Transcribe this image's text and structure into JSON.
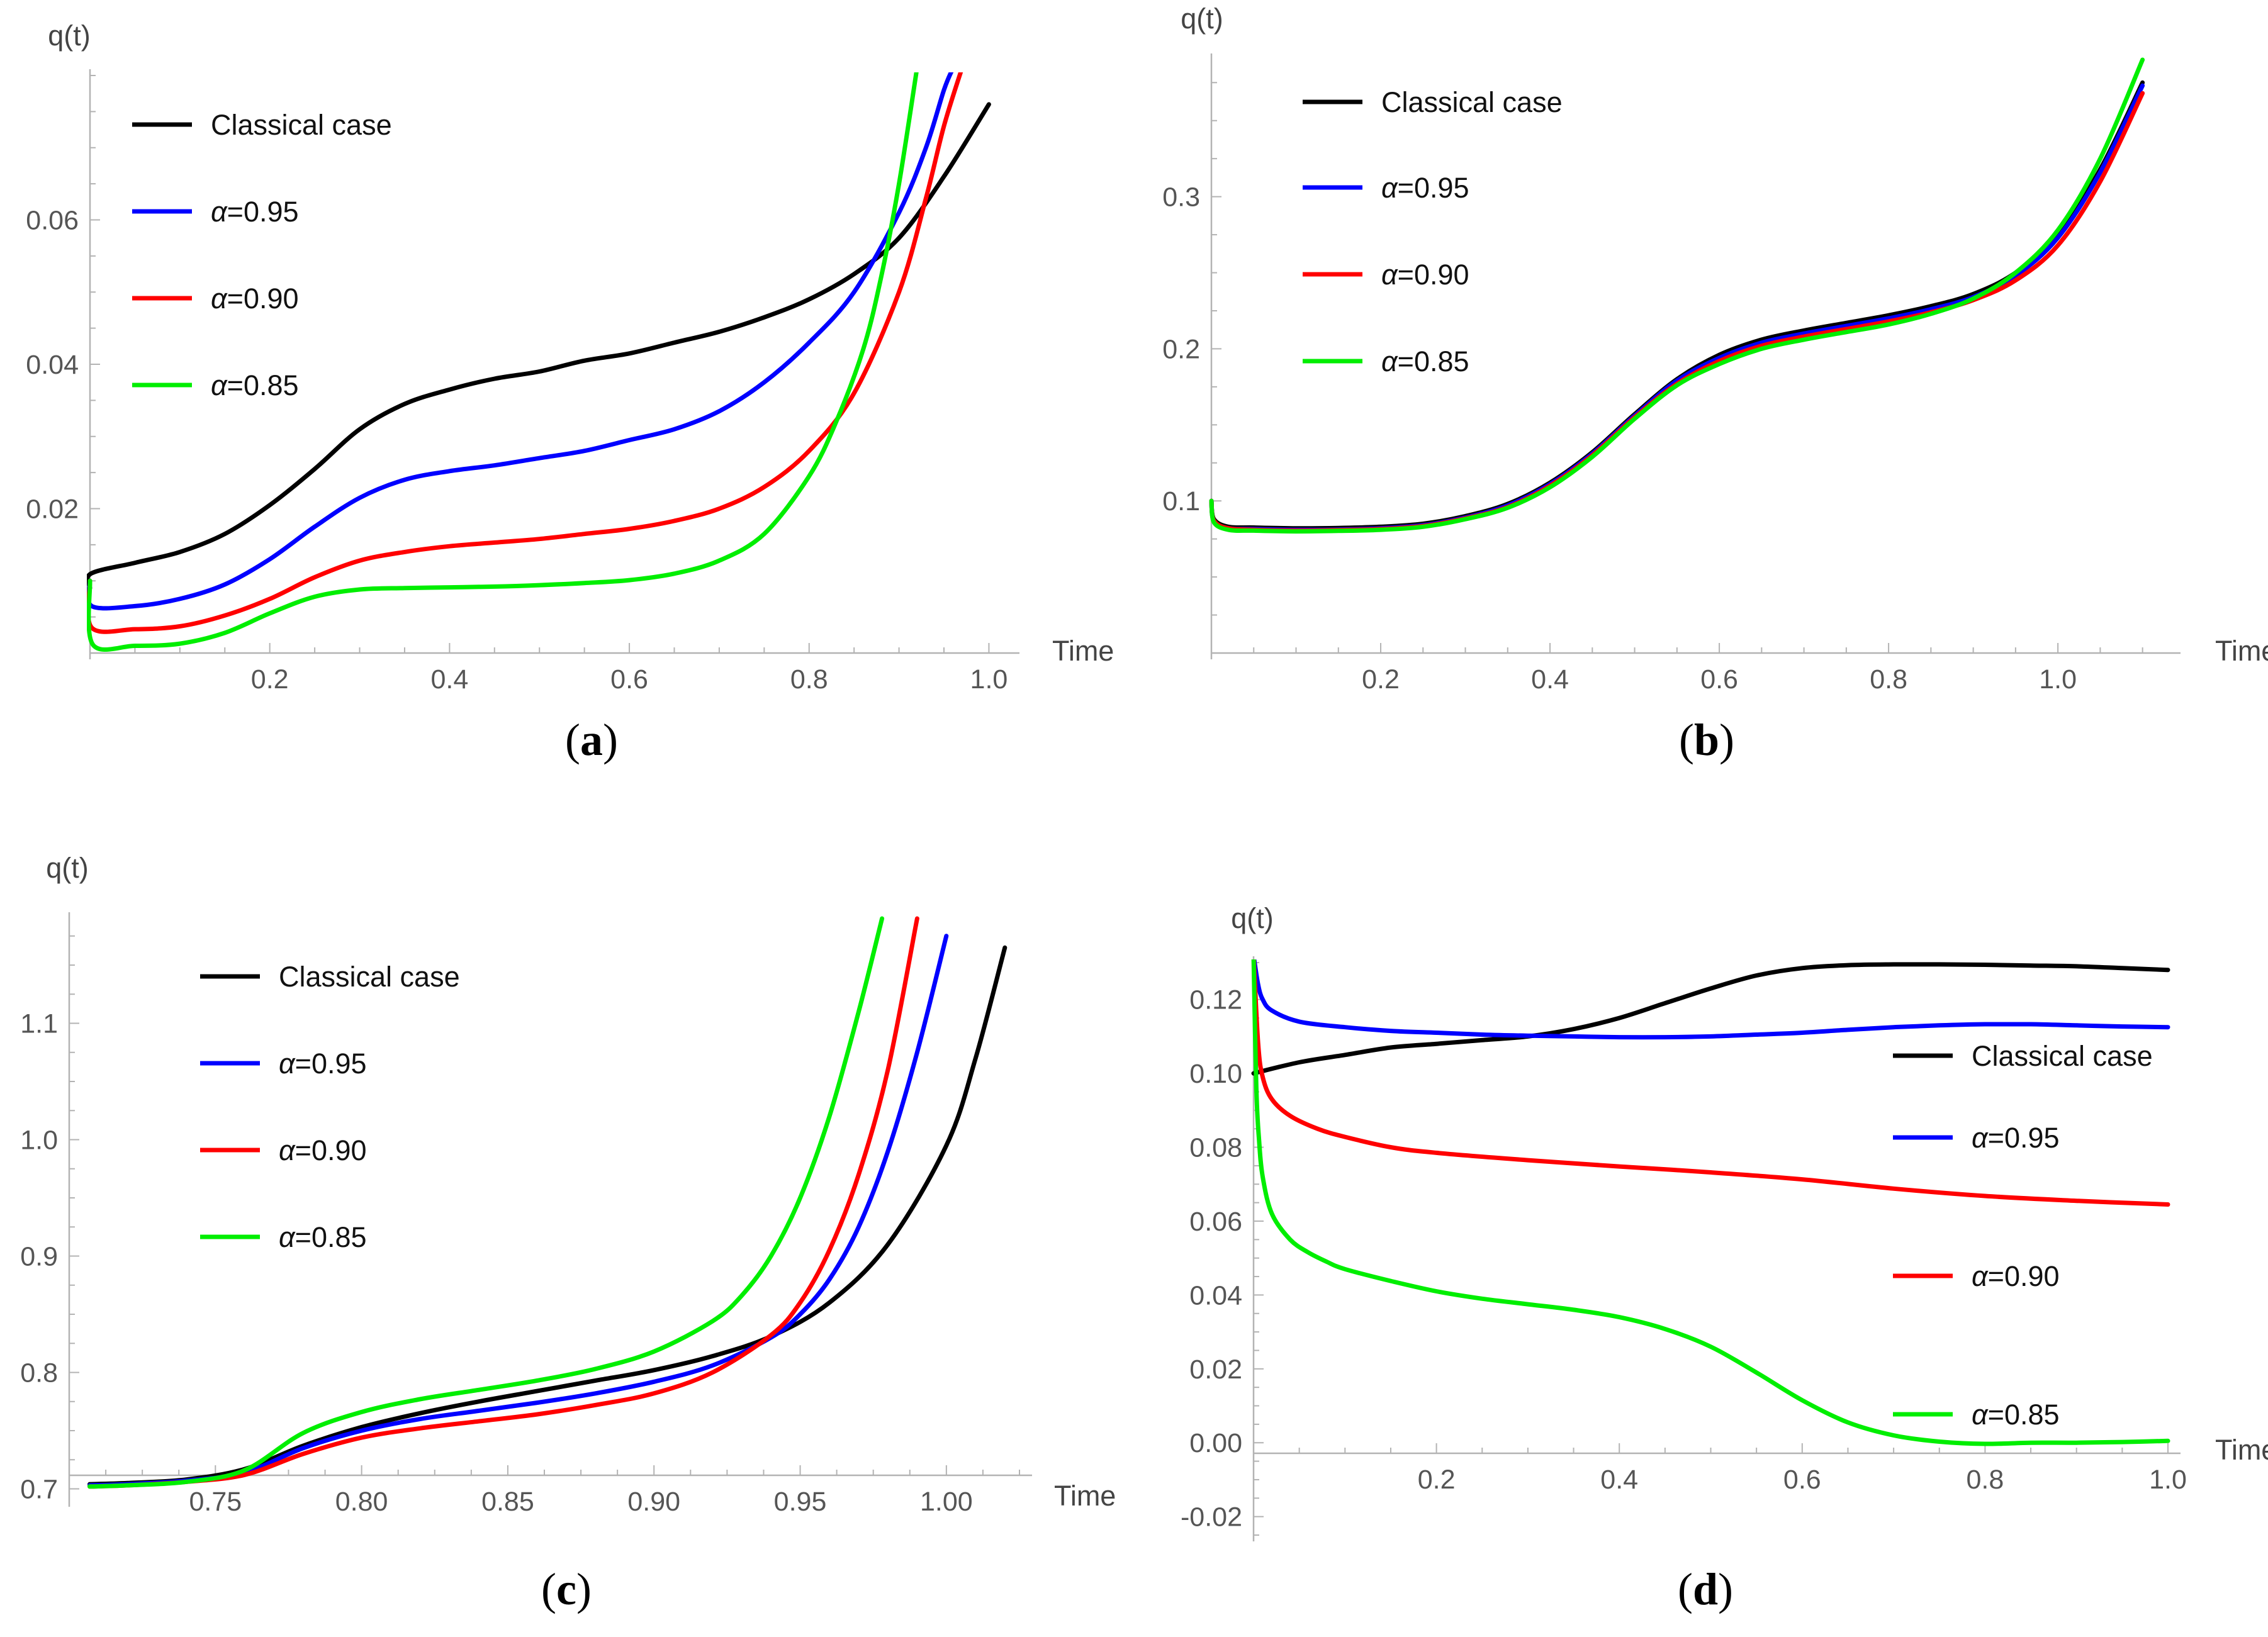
{
  "chart_data": [
    {
      "id": "a",
      "type": "line",
      "panel_label_text": "a",
      "xlabel": "Time",
      "ylabel": "q(t)",
      "xlim": [
        0.0,
        1.02
      ],
      "ylim": [
        0.0,
        0.08
      ],
      "xticks": [
        0.2,
        0.4,
        0.6,
        0.8,
        1.0
      ],
      "xtick_labels": [
        "0.2",
        "0.4",
        "0.6",
        "0.8",
        "1.0"
      ],
      "yticks": [
        0.02,
        0.04,
        0.06
      ],
      "ytick_labels": [
        "0.02",
        "0.04",
        "0.06"
      ],
      "legend_position": "top-left",
      "series": [
        {
          "name": "Classical case",
          "color": "#000000",
          "x": [
            0,
            0.001,
            0.05,
            0.1,
            0.15,
            0.2,
            0.25,
            0.3,
            0.35,
            0.4,
            0.45,
            0.5,
            0.55,
            0.6,
            0.65,
            0.7,
            0.75,
            0.8,
            0.85,
            0.9,
            0.95,
            1.0
          ],
          "y": [
            0.009,
            0.011,
            0.0125,
            0.014,
            0.0165,
            0.0205,
            0.0255,
            0.031,
            0.0345,
            0.0365,
            0.038,
            0.039,
            0.0405,
            0.0415,
            0.043,
            0.0445,
            0.0465,
            0.049,
            0.0525,
            0.0575,
            0.066,
            0.076
          ]
        },
        {
          "name": "α=0.95",
          "color": "#0000ff",
          "x": [
            0,
            0.002,
            0.05,
            0.1,
            0.15,
            0.2,
            0.25,
            0.3,
            0.35,
            0.4,
            0.45,
            0.5,
            0.55,
            0.6,
            0.65,
            0.7,
            0.75,
            0.8,
            0.85,
            0.9,
            0.93,
            0.95,
            0.96
          ],
          "y": [
            0.01,
            0.0065,
            0.0065,
            0.0075,
            0.0095,
            0.013,
            0.0175,
            0.0215,
            0.024,
            0.0252,
            0.026,
            0.027,
            0.028,
            0.0295,
            0.031,
            0.0335,
            0.0375,
            0.043,
            0.05,
            0.061,
            0.07,
            0.078,
            0.081
          ]
        },
        {
          "name": "α=0.90",
          "color": "#ff0000",
          "x": [
            0,
            0.002,
            0.05,
            0.1,
            0.15,
            0.2,
            0.25,
            0.3,
            0.35,
            0.4,
            0.45,
            0.5,
            0.55,
            0.6,
            0.65,
            0.7,
            0.75,
            0.8,
            0.85,
            0.9,
            0.93,
            0.95,
            0.97
          ],
          "y": [
            0.01,
            0.0035,
            0.0033,
            0.0037,
            0.0052,
            0.0075,
            0.0105,
            0.0128,
            0.014,
            0.0148,
            0.0153,
            0.0158,
            0.0165,
            0.0172,
            0.0183,
            0.02,
            0.023,
            0.028,
            0.036,
            0.05,
            0.063,
            0.073,
            0.081
          ]
        },
        {
          "name": "α=0.85",
          "color": "#00ee00",
          "x": [
            0,
            0.003,
            0.05,
            0.1,
            0.15,
            0.2,
            0.25,
            0.3,
            0.35,
            0.4,
            0.45,
            0.5,
            0.55,
            0.6,
            0.65,
            0.7,
            0.75,
            0.8,
            0.83,
            0.86,
            0.88,
            0.9,
            0.92
          ],
          "y": [
            0.01,
            0.0012,
            0.001,
            0.0013,
            0.0028,
            0.0055,
            0.0078,
            0.0088,
            0.009,
            0.0091,
            0.0092,
            0.0094,
            0.0097,
            0.0101,
            0.011,
            0.0128,
            0.0165,
            0.0245,
            0.032,
            0.042,
            0.052,
            0.065,
            0.081
          ]
        }
      ]
    },
    {
      "id": "b",
      "type": "line",
      "panel_label_text": "b",
      "xlabel": "Time",
      "ylabel": "q(t)",
      "xlim": [
        0.0,
        1.13
      ],
      "ylim": [
        0.0,
        0.39
      ],
      "xticks": [
        0.2,
        0.4,
        0.6,
        0.8,
        1.0
      ],
      "xtick_labels": [
        "0.2",
        "0.4",
        "0.6",
        "0.8",
        "1.0"
      ],
      "yticks": [
        0.1,
        0.2,
        0.3
      ],
      "ytick_labels": [
        "0.1",
        "0.2",
        "0.3"
      ],
      "legend_position": "top-left",
      "series": [
        {
          "name": "Classical case",
          "color": "#000000",
          "x": [
            0,
            0.003,
            0.02,
            0.05,
            0.1,
            0.15,
            0.2,
            0.25,
            0.3,
            0.35,
            0.4,
            0.45,
            0.5,
            0.55,
            0.6,
            0.65,
            0.7,
            0.75,
            0.8,
            0.85,
            0.9,
            0.95,
            1.0,
            1.05,
            1.1
          ],
          "y": [
            0.1,
            0.088,
            0.083,
            0.0825,
            0.082,
            0.0822,
            0.083,
            0.085,
            0.09,
            0.098,
            0.112,
            0.132,
            0.157,
            0.18,
            0.196,
            0.206,
            0.212,
            0.217,
            0.222,
            0.228,
            0.236,
            0.25,
            0.275,
            0.318,
            0.375
          ]
        },
        {
          "name": "α=0.95",
          "color": "#0000ff",
          "x": [
            0,
            0.003,
            0.02,
            0.05,
            0.1,
            0.15,
            0.2,
            0.25,
            0.3,
            0.35,
            0.4,
            0.45,
            0.5,
            0.55,
            0.6,
            0.65,
            0.7,
            0.75,
            0.8,
            0.85,
            0.9,
            0.95,
            1.0,
            1.05,
            1.1
          ],
          "y": [
            0.1,
            0.087,
            0.082,
            0.0815,
            0.081,
            0.0812,
            0.082,
            0.084,
            0.089,
            0.097,
            0.111,
            0.131,
            0.156,
            0.179,
            0.194,
            0.204,
            0.21,
            0.215,
            0.22,
            0.226,
            0.234,
            0.248,
            0.273,
            0.316,
            0.373
          ]
        },
        {
          "name": "α=0.90",
          "color": "#ff0000",
          "x": [
            0,
            0.003,
            0.02,
            0.05,
            0.1,
            0.15,
            0.2,
            0.25,
            0.3,
            0.35,
            0.4,
            0.45,
            0.5,
            0.55,
            0.6,
            0.65,
            0.7,
            0.75,
            0.8,
            0.85,
            0.9,
            0.95,
            1.0,
            1.05,
            1.1
          ],
          "y": [
            0.1,
            0.087,
            0.082,
            0.081,
            0.0805,
            0.0808,
            0.0815,
            0.0835,
            0.0885,
            0.096,
            0.11,
            0.13,
            0.155,
            0.177,
            0.192,
            0.202,
            0.208,
            0.213,
            0.218,
            0.224,
            0.232,
            0.245,
            0.268,
            0.31,
            0.368
          ]
        },
        {
          "name": "α=0.85",
          "color": "#00ee00",
          "x": [
            0,
            0.003,
            0.02,
            0.05,
            0.1,
            0.15,
            0.2,
            0.25,
            0.3,
            0.35,
            0.4,
            0.45,
            0.5,
            0.55,
            0.6,
            0.65,
            0.7,
            0.75,
            0.8,
            0.85,
            0.9,
            0.95,
            1.0,
            1.05,
            1.1
          ],
          "y": [
            0.1,
            0.086,
            0.081,
            0.0805,
            0.08,
            0.0803,
            0.081,
            0.083,
            0.088,
            0.0955,
            0.109,
            0.129,
            0.154,
            0.176,
            0.19,
            0.2,
            0.206,
            0.211,
            0.216,
            0.223,
            0.233,
            0.25,
            0.278,
            0.325,
            0.39
          ]
        }
      ]
    },
    {
      "id": "c",
      "type": "line",
      "panel_label_text": "c",
      "xlabel": "Time",
      "ylabel": "q(t)",
      "xlim": [
        0.7,
        1.025
      ],
      "ylim": [
        0.69,
        1.19
      ],
      "xticks": [
        0.75,
        0.8,
        0.85,
        0.9,
        0.95,
        1.0
      ],
      "xtick_labels": [
        "0.75",
        "0.80",
        "0.85",
        "0.90",
        "0.95",
        "1.00"
      ],
      "yticks": [
        0.7,
        0.8,
        0.9,
        1.0,
        1.1
      ],
      "ytick_labels": [
        "0.7",
        "0.8",
        "0.9",
        "1.0",
        "1.1"
      ],
      "legend_position": "top-left",
      "series": [
        {
          "name": "Classical case",
          "color": "#000000",
          "x": [
            0.707,
            0.72,
            0.74,
            0.76,
            0.78,
            0.8,
            0.82,
            0.84,
            0.86,
            0.88,
            0.9,
            0.92,
            0.94,
            0.96,
            0.98,
            1.0,
            1.01,
            1.02
          ],
          "y": [
            0.704,
            0.705,
            0.708,
            0.717,
            0.737,
            0.753,
            0.765,
            0.775,
            0.784,
            0.793,
            0.802,
            0.814,
            0.831,
            0.86,
            0.91,
            0.995,
            1.07,
            1.165
          ]
        },
        {
          "name": "α=0.95",
          "color": "#0000ff",
          "x": [
            0.707,
            0.72,
            0.74,
            0.76,
            0.78,
            0.8,
            0.82,
            0.84,
            0.86,
            0.88,
            0.9,
            0.92,
            0.94,
            0.95,
            0.96,
            0.97,
            0.98,
            0.99,
            1.0
          ],
          "y": [
            0.703,
            0.704,
            0.707,
            0.714,
            0.735,
            0.75,
            0.76,
            0.767,
            0.774,
            0.782,
            0.792,
            0.806,
            0.83,
            0.85,
            0.88,
            0.925,
            0.99,
            1.075,
            1.175
          ]
        },
        {
          "name": "α=0.90",
          "color": "#ff0000",
          "x": [
            0.707,
            0.72,
            0.74,
            0.76,
            0.78,
            0.8,
            0.82,
            0.84,
            0.86,
            0.88,
            0.9,
            0.92,
            0.94,
            0.95,
            0.96,
            0.97,
            0.98,
            0.99
          ],
          "y": [
            0.702,
            0.703,
            0.706,
            0.712,
            0.73,
            0.744,
            0.752,
            0.758,
            0.764,
            0.772,
            0.782,
            0.8,
            0.832,
            0.86,
            0.905,
            0.97,
            1.06,
            1.19
          ]
        },
        {
          "name": "α=0.85",
          "color": "#00ee00",
          "x": [
            0.707,
            0.72,
            0.74,
            0.76,
            0.78,
            0.8,
            0.82,
            0.84,
            0.86,
            0.88,
            0.9,
            0.92,
            0.93,
            0.94,
            0.95,
            0.96,
            0.97,
            0.978
          ],
          "y": [
            0.702,
            0.703,
            0.706,
            0.716,
            0.748,
            0.766,
            0.777,
            0.785,
            0.793,
            0.803,
            0.818,
            0.844,
            0.866,
            0.9,
            0.95,
            1.02,
            1.11,
            1.19
          ]
        }
      ]
    },
    {
      "id": "d",
      "type": "line",
      "panel_label_text": "d",
      "xlabel": "Time",
      "ylabel": "q(t)",
      "xlim": [
        0.0,
        1.0
      ],
      "ylim": [
        -0.025,
        0.13
      ],
      "xticks": [
        0.2,
        0.4,
        0.6,
        0.8,
        1.0
      ],
      "xtick_labels": [
        "0.2",
        "0.4",
        "0.6",
        "0.8",
        "1.0"
      ],
      "yticks": [
        -0.02,
        0.0,
        0.02,
        0.04,
        0.06,
        0.08,
        0.1,
        0.12
      ],
      "ytick_labels": [
        "-0.02",
        "0.00",
        "0.02",
        "0.04",
        "0.06",
        "0.08",
        "0.10",
        "0.12"
      ],
      "legend_position": "right",
      "series": [
        {
          "name": "Classical case",
          "color": "#000000",
          "x": [
            0,
            0.05,
            0.1,
            0.15,
            0.2,
            0.25,
            0.3,
            0.35,
            0.4,
            0.45,
            0.5,
            0.55,
            0.6,
            0.65,
            0.7,
            0.75,
            0.8,
            0.85,
            0.9,
            0.95,
            1.0
          ],
          "y": [
            0.1,
            0.103,
            0.105,
            0.107,
            0.108,
            0.109,
            0.11,
            0.112,
            0.115,
            0.119,
            0.123,
            0.1265,
            0.1285,
            0.1293,
            0.1295,
            0.1295,
            0.1294,
            0.1292,
            0.129,
            0.1285,
            0.128
          ]
        },
        {
          "name": "α=0.95",
          "color": "#0000ff",
          "x": [
            0,
            0.005,
            0.01,
            0.02,
            0.05,
            0.1,
            0.15,
            0.2,
            0.25,
            0.3,
            0.35,
            0.4,
            0.45,
            0.5,
            0.55,
            0.6,
            0.65,
            0.7,
            0.75,
            0.8,
            0.85,
            0.9,
            0.95,
            1.0
          ],
          "y": [
            0.132,
            0.124,
            0.12,
            0.117,
            0.114,
            0.1125,
            0.1115,
            0.111,
            0.1105,
            0.1102,
            0.11,
            0.1098,
            0.1098,
            0.11,
            0.1105,
            0.111,
            0.1118,
            0.1125,
            0.113,
            0.1133,
            0.1133,
            0.113,
            0.1127,
            0.1125
          ]
        },
        {
          "name": "α=0.90",
          "color": "#ff0000",
          "x": [
            0,
            0.005,
            0.01,
            0.02,
            0.04,
            0.07,
            0.1,
            0.15,
            0.2,
            0.3,
            0.4,
            0.5,
            0.6,
            0.7,
            0.8,
            0.9,
            1.0
          ],
          "y": [
            0.132,
            0.108,
            0.099,
            0.093,
            0.0885,
            0.085,
            0.0828,
            0.08,
            0.0785,
            0.0765,
            0.0748,
            0.0732,
            0.0713,
            0.0688,
            0.0668,
            0.0655,
            0.0645
          ]
        },
        {
          "name": "α=0.85",
          "color": "#00ee00",
          "x": [
            0,
            0.003,
            0.006,
            0.01,
            0.02,
            0.04,
            0.06,
            0.08,
            0.1,
            0.15,
            0.2,
            0.25,
            0.3,
            0.35,
            0.4,
            0.45,
            0.5,
            0.55,
            0.6,
            0.65,
            0.7,
            0.75,
            0.8,
            0.85,
            0.9,
            0.95,
            1.0
          ],
          "y": [
            0.132,
            0.096,
            0.082,
            0.072,
            0.062,
            0.055,
            0.0515,
            0.049,
            0.047,
            0.0438,
            0.041,
            0.039,
            0.0375,
            0.036,
            0.034,
            0.0308,
            0.026,
            0.019,
            0.0115,
            0.0055,
            0.002,
            0.0003,
            -0.0003,
            0.0,
            0.0,
            0.0002,
            0.0005
          ]
        }
      ]
    }
  ]
}
